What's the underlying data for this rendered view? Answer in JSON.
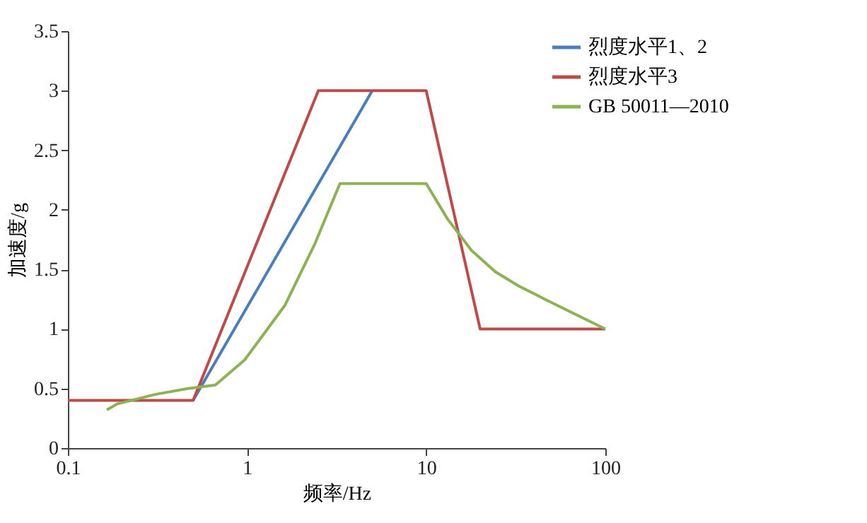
{
  "chart_data": {
    "type": "line",
    "xlabel": "频率/Hz",
    "ylabel": "加速度/g",
    "log": "x",
    "xlim": [
      0.1,
      100
    ],
    "xticks": [
      0.1,
      1,
      10,
      100
    ],
    "ylim": [
      0,
      3.5
    ],
    "yticks": [
      0,
      0.5,
      1,
      1.5,
      2,
      2.5,
      3,
      3.5
    ],
    "grid": false,
    "legend": "right",
    "marker": "none",
    "line_style": "solid",
    "series": [
      {
        "name": "烈度水平1、2",
        "color": "#4a7ebb",
        "x": [
          0.5,
          5
        ],
        "values": [
          0.4,
          3
        ]
      },
      {
        "name": "烈度水平3",
        "color": "#be4b48",
        "x": [
          0.1,
          0.5,
          2.5,
          10,
          20,
          100
        ],
        "values": [
          0.4,
          0.4,
          3,
          3,
          1,
          1
        ]
      },
      {
        "name": "GB 50011—2010",
        "color": "#8db255",
        "x": [
          0.165,
          0.188,
          0.306,
          0.468,
          0.666,
          0.97,
          1.63,
          2.4,
          3.3,
          10,
          13.2,
          17.9,
          24.3,
          32.9,
          47.3,
          100
        ],
        "values": [
          0.32,
          0.37,
          0.45,
          0.5,
          0.53,
          0.74,
          1.2,
          1.72,
          2.22,
          2.22,
          1.92,
          1.66,
          1.48,
          1.36,
          1.24,
          1.0
        ]
      }
    ]
  }
}
